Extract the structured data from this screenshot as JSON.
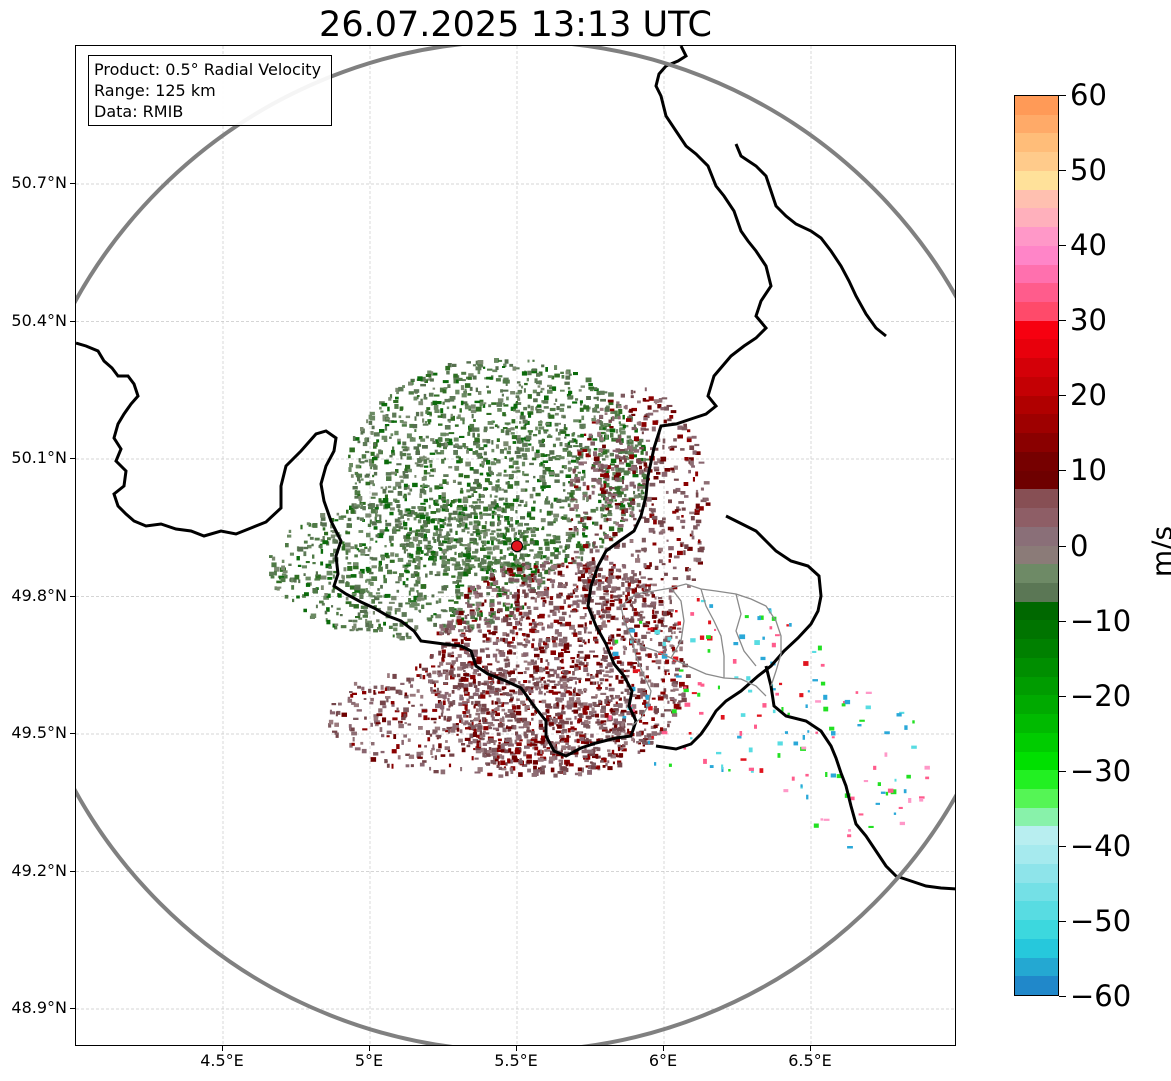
{
  "title": "26.07.2025 13:13 UTC",
  "info": {
    "product": "Product: 0.5° Radial Velocity",
    "range": "Range: 125 km",
    "data": "Data: RMIB"
  },
  "map": {
    "lat_ticks": [
      "50.7°N",
      "50.4°N",
      "50.1°N",
      "49.8°N",
      "49.5°N",
      "49.2°N",
      "48.9°N"
    ],
    "lon_ticks": [
      "4.5°E",
      "5°E",
      "5.5°E",
      "6°E",
      "6.5°E"
    ],
    "grid": true,
    "radar_site": {
      "lon": 5.5,
      "lat": 49.91,
      "color": "#e0141e"
    },
    "range_ring_color": "#808080",
    "border_color": "#000000",
    "subregion_border_color": "#808080"
  },
  "colorbar": {
    "label": "m/s",
    "tick_labels": [
      "60",
      "50",
      "40",
      "30",
      "20",
      "10",
      "0",
      "−10",
      "−20",
      "−30",
      "−40",
      "−50",
      "−60"
    ],
    "min": -60,
    "max": 60,
    "colors": [
      "#ff9a57",
      "#ffaa68",
      "#ffbd79",
      "#ffcb8b",
      "#ffe19a",
      "#ffc0b0",
      "#ffb0bc",
      "#ff98c8",
      "#ff85c8",
      "#ff70ae",
      "#ff5c8c",
      "#ff4a6a",
      "#f70010",
      "#e8000c",
      "#d40008",
      "#c40004",
      "#b00000",
      "#9e0000",
      "#8a0000",
      "#760000",
      "#6e0000",
      "#874f54",
      "#8e5e66",
      "#8a6f78",
      "#8b7b78",
      "#6e8a66",
      "#5b7755",
      "#006800",
      "#007400",
      "#008000",
      "#008e00",
      "#009c00",
      "#00aa00",
      "#00ba00",
      "#00cc00",
      "#00e000",
      "#22f022",
      "#55f555",
      "#88f2aa",
      "#b8eef0",
      "#a6eaee",
      "#8ee4ea",
      "#74e0e6",
      "#58dce2",
      "#3cd8de",
      "#26c8dc",
      "#24a8d2",
      "#2088ca"
    ]
  }
}
